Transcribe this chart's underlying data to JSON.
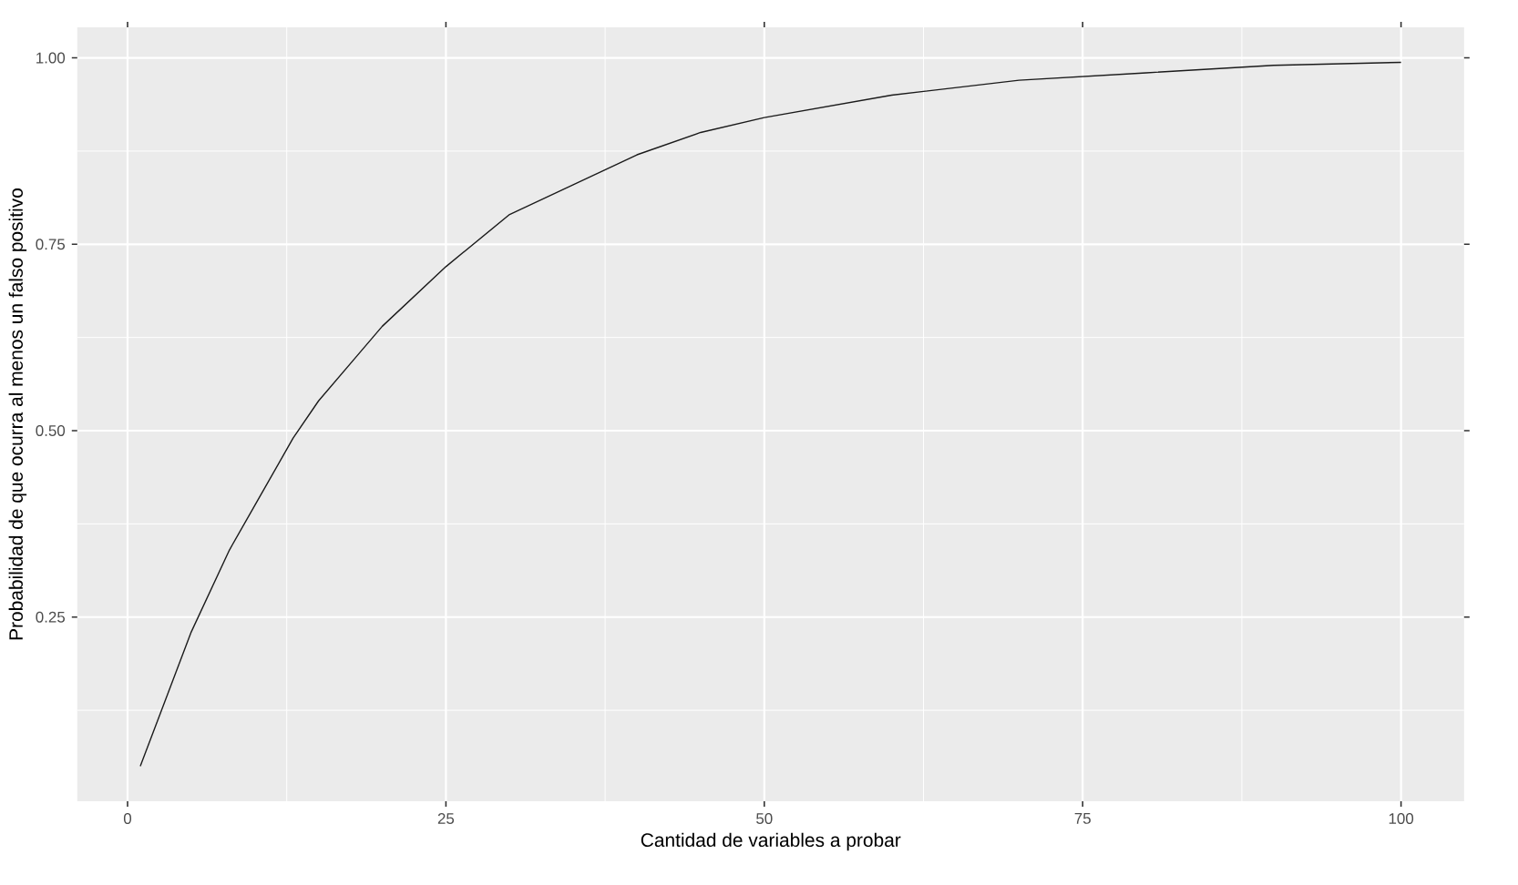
{
  "chart_data": {
    "type": "line",
    "xlabel": "Cantidad de variables a probar",
    "ylabel": "Probabilidad de que ocurra al menos un falso positivo",
    "x": [
      1,
      3,
      5,
      8,
      10,
      13,
      15,
      18,
      20,
      25,
      30,
      35,
      40,
      45,
      50,
      60,
      70,
      80,
      90,
      100
    ],
    "series": [
      {
        "color": "#1a1a1a",
        "values": [
          0.05,
          0.14,
          0.23,
          0.34,
          0.4,
          0.49,
          0.54,
          0.6,
          0.64,
          0.72,
          0.79,
          0.83,
          0.87,
          0.9,
          0.92,
          0.95,
          0.97,
          0.98,
          0.99,
          0.994
        ]
      }
    ],
    "xlim": [
      -3.95,
      104.95
    ],
    "ylim": [
      0.003,
      1.041
    ],
    "xticks": [
      0,
      25,
      50,
      75,
      100
    ],
    "yticks": [
      0.25,
      {
        "value": 0.5,
        "label": "0.50"
      },
      0.75,
      {
        "value": 1.0,
        "label": "1.00"
      }
    ],
    "grid": true,
    "marker": "none",
    "line_style": "solid"
  }
}
